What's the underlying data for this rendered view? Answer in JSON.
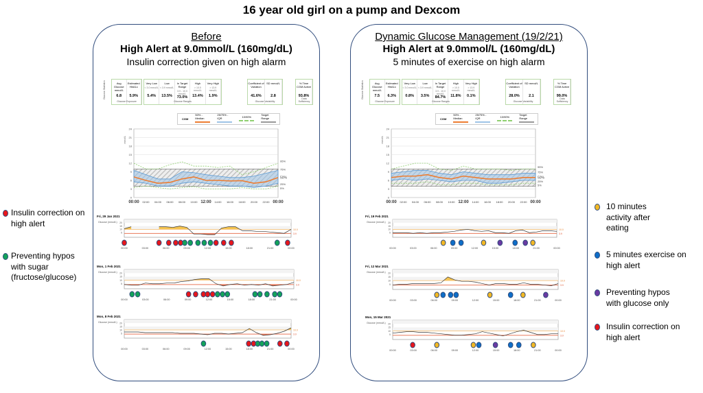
{
  "title": "16 year old girl on a pump and Dexcom",
  "colors": {
    "insulin": "#e8161b",
    "sugar": "#13a35a",
    "activity": "#f2b824",
    "exercise": "#0e6ec8",
    "glucose_only": "#6a3aa2",
    "median": "#ed7d31",
    "iqr": "#9dc3e6",
    "outer": "#8fcf6f",
    "high": "#f5c451",
    "low": "#e9795a",
    "panel_border": "#2f4b7c"
  },
  "legend_left": [
    {
      "type": "insulin",
      "icon": "red-dot",
      "lines": [
        "Insulin correction on",
        "high alert"
      ]
    },
    {
      "type": "sugar",
      "icon": "green-dot",
      "lines": [
        "Preventing hypos",
        "with sugar",
        "(fructose/glucose)"
      ]
    }
  ],
  "legend_right": [
    {
      "type": "activity",
      "icon": "yellow-dot",
      "lines": [
        "10 minutes",
        "activity after",
        "eating"
      ]
    },
    {
      "type": "exercise",
      "icon": "blue-dot",
      "lines": [
        "5 minutes exercise on",
        "high alert"
      ]
    },
    {
      "type": "glucose_only",
      "icon": "purple-dot",
      "lines": [
        "Preventing hypos",
        "with glucose only"
      ]
    },
    {
      "type": "insulin",
      "icon": "red-dot",
      "lines": [
        "Insulin correction on",
        "high alert"
      ]
    }
  ],
  "panels": [
    {
      "heading": "Before",
      "alert": "High Alert at 9.0mmol/L (160mg/dL)",
      "action": "Insulin correction given on high alarm",
      "stats": {
        "side_label": "Glucose Statistics",
        "exposure": {
          "labels": [
            "Avg Glucose mmol/L",
            "Estimated HbA1c"
          ],
          "values": [
            "6.8",
            "5.9%"
          ],
          "footer": "Glucose Exposure"
        },
        "ranges": {
          "labels": [
            "Very Low",
            "Low",
            "In Target Range",
            "High",
            "Very High"
          ],
          "subs": [
            "< 3.0 mmol/L",
            "< 3.9 mmol/L",
            "3.9 - 10.0 mmol/L",
            "> 10.0 mmol/L",
            "> 13.9 mmol/L"
          ],
          "values": [
            "5.4%",
            "13.5%",
            "73.0%",
            "13.4%",
            "1.9%"
          ],
          "footer": "Glucose Ranges"
        },
        "variability": {
          "labels": [
            "Coefficient of Variation",
            "SD mmol/L"
          ],
          "values": [
            "41.6%",
            "2.8"
          ],
          "footer": "Glucose Variability"
        },
        "active": {
          "labels": [
            "% Time CGM Active"
          ],
          "values": [
            "93.8%"
          ],
          "footer": "Data Sufficiency"
        }
      },
      "agp_legend": {
        "cgm": "CGM",
        "median": "50% - Median",
        "iqr": "25/75% - IQR",
        "outer": "10/90%",
        "target": "Target Range"
      }
    },
    {
      "heading": "Dynamic Glucose Management (19/2/21)",
      "alert": "High Alert at 9.0mmol/L (160mg/dL)",
      "action": "5 minutes of exercise on high alarm",
      "stats": {
        "side_label": "Glucose Statistics",
        "exposure": {
          "labels": [
            "Avg Glucose mmol/L",
            "Estimated HbA1c"
          ],
          "values": [
            "7.5",
            "6.3%"
          ],
          "footer": "Glucose Exposure"
        },
        "ranges": {
          "labels": [
            "Very Low",
            "Low",
            "In Target Range",
            "High",
            "Very High"
          ],
          "subs": [
            "< 3.0 mmol/L",
            "< 3.9 mmol/L",
            "3.9 - 10.0 mmol/L",
            "> 10.0 mmol/L",
            "> 13.9 mmol/L"
          ],
          "values": [
            "0.8%",
            "3.5%",
            "84.7%",
            "11.8%",
            "0.1%"
          ],
          "footer": "Glucose Ranges"
        },
        "variability": {
          "labels": [
            "Coefficient of Variation",
            "SD mmol/L"
          ],
          "values": [
            "28.0%",
            "2.1"
          ],
          "footer": "Glucose Variability"
        },
        "active": {
          "labels": [
            "% Time CGM Active"
          ],
          "values": [
            "99.0%"
          ],
          "footer": "Data Sufficiency"
        }
      },
      "agp_legend": {
        "cgm": "CGM",
        "median": "50% - Median",
        "iqr": "25/75% - IQR",
        "outer": "10/90%",
        "target": "Target Range"
      }
    }
  ],
  "chart_data": [
    {
      "id": "agp-before",
      "type": "area",
      "title": "",
      "ylabel": "mmol/L",
      "ylim": [
        0,
        24
      ],
      "yticks": [
        0,
        3,
        6,
        9,
        12,
        15,
        18,
        21,
        24
      ],
      "target": [
        3.9,
        10
      ],
      "x": [
        "00:00",
        "02:00",
        "04:00",
        "06:00",
        "08:00",
        "10:00",
        "12:00",
        "14:00",
        "16:00",
        "18:00",
        "20:00",
        "22:00",
        "00:00"
      ],
      "percentile_labels": [
        "95%",
        "75%",
        "50%",
        "25%",
        "5%"
      ],
      "p5": [
        3.5,
        4,
        3.5,
        3,
        3.5,
        3.8,
        3,
        3,
        3,
        3.5,
        3,
        3,
        4
      ],
      "p25": [
        5.5,
        5,
        4,
        4,
        5,
        5.5,
        5,
        4.5,
        4,
        4,
        3.5,
        4,
        5
      ],
      "median": [
        7.2,
        6,
        5,
        5.3,
        6.5,
        7.2,
        6,
        6,
        5.8,
        5.9,
        5,
        5.5,
        7
      ],
      "p75": [
        9.5,
        8,
        6.5,
        6.5,
        9,
        8.7,
        8,
        7.5,
        7,
        7,
        7.5,
        8.5,
        9.5
      ],
      "p95": [
        12,
        10,
        10,
        11.5,
        12.5,
        11,
        11,
        10.5,
        11,
        8,
        9,
        10.5,
        12
      ]
    },
    {
      "id": "agp-after",
      "type": "area",
      "title": "",
      "ylabel": "mmol/L",
      "ylim": [
        0,
        24
      ],
      "yticks": [
        0,
        3,
        6,
        9,
        12,
        15,
        18,
        21,
        24
      ],
      "target": [
        3.9,
        10
      ],
      "x": [
        "00:00",
        "02:00",
        "04:00",
        "06:00",
        "08:00",
        "10:00",
        "12:00",
        "14:00",
        "16:00",
        "18:00",
        "20:00",
        "22:00",
        "00:00"
      ],
      "percentile_labels": [
        "95%",
        "75%",
        "50%",
        "25%",
        "5%"
      ],
      "p5": [
        5,
        5,
        5,
        5.5,
        4.5,
        4.5,
        5,
        5,
        4.5,
        4.5,
        4.5,
        5,
        5
      ],
      "p25": [
        6,
        6.5,
        6,
        6.5,
        6,
        5.5,
        6,
        6,
        5,
        5,
        5.5,
        6,
        6
      ],
      "median": [
        7,
        7.5,
        7.5,
        8,
        7,
        6.5,
        7.5,
        7,
        6.5,
        6.5,
        6.5,
        7,
        7
      ],
      "p75": [
        8.5,
        9,
        9.5,
        9.5,
        8.5,
        8,
        9,
        8.5,
        8,
        8,
        8,
        8.5,
        8.5
      ],
      "p95": [
        10,
        11,
        12,
        12,
        10,
        9.5,
        11,
        10,
        10,
        10,
        9.5,
        10,
        10
      ]
    },
    {
      "id": "day-before-1",
      "type": "line",
      "date": "Fri, 29 Jan 2021",
      "ylabel": "Glucose (mmol/L)",
      "ylim": [
        0,
        25
      ],
      "yticks": [
        5,
        10,
        15,
        20
      ],
      "thresholds": [
        "10.0",
        "3.9"
      ],
      "xticks": [
        "00:00",
        "03:00",
        "06:00",
        "09:00",
        "12:00",
        "15:00",
        "18:00",
        "21:00",
        "00:00"
      ],
      "hourly": [
        11,
        14,
        null,
        null,
        null,
        14,
        14,
        13,
        15,
        13,
        3,
        3,
        2,
        2,
        12,
        14,
        14,
        8,
        8,
        7,
        7,
        6,
        5,
        4,
        10
      ],
      "markers": [
        [
          0,
          "insulin"
        ],
        [
          5,
          "insulin"
        ],
        [
          6.4,
          "insulin"
        ],
        [
          7.4,
          "insulin"
        ],
        [
          8.1,
          "insulin"
        ],
        [
          8.7,
          "sugar"
        ],
        [
          9.5,
          "sugar"
        ],
        [
          10.6,
          "sugar"
        ],
        [
          11.5,
          "sugar"
        ],
        [
          12.4,
          "sugar"
        ],
        [
          13.2,
          "insulin"
        ],
        [
          14.3,
          "insulin"
        ],
        [
          15.4,
          "insulin"
        ],
        [
          22,
          "sugar"
        ],
        [
          23.5,
          "insulin"
        ]
      ]
    },
    {
      "id": "day-before-2",
      "type": "line",
      "date": "Mon, 1 Feb 2021",
      "ylabel": "Glucose (mmol/L)",
      "ylim": [
        0,
        25
      ],
      "yticks": [
        5,
        10,
        15,
        20
      ],
      "thresholds": [
        "10.0",
        "3.9"
      ],
      "xticks": [
        "00:00",
        "03:00",
        "06:00",
        "09:00",
        "12:00",
        "15:00",
        "18:00",
        "21:00",
        "00:00"
      ],
      "hourly": [
        4,
        3,
        3,
        6,
        5,
        5,
        6,
        6,
        8,
        9,
        11,
        12,
        12,
        5,
        2,
        4,
        5,
        3,
        4,
        3,
        5,
        2,
        3,
        4,
        7
      ],
      "markers": [
        [
          1.1,
          "sugar"
        ],
        [
          1.9,
          "sugar"
        ],
        [
          9.1,
          "insulin"
        ],
        [
          10.1,
          "insulin"
        ],
        [
          11.2,
          "insulin"
        ],
        [
          11.8,
          "insulin"
        ],
        [
          12.5,
          "insulin"
        ],
        [
          13.2,
          "sugar"
        ],
        [
          13.9,
          "sugar"
        ],
        [
          14.6,
          "sugar"
        ],
        [
          18.5,
          "sugar"
        ],
        [
          19.2,
          "sugar"
        ],
        [
          20.2,
          "sugar"
        ],
        [
          21.3,
          "sugar"
        ],
        [
          22,
          "sugar"
        ]
      ]
    },
    {
      "id": "day-before-3",
      "type": "line",
      "date": "Mon, 8 Feb 2021",
      "ylabel": "Glucose (mmol/L)",
      "ylim": [
        0,
        25
      ],
      "yticks": [
        5,
        10,
        15,
        20
      ],
      "thresholds": [
        "10.0",
        "3.9"
      ],
      "xticks": [
        "00:00",
        "03:00",
        "06:00",
        "09:00",
        "12:00",
        "15:00",
        "18:00",
        "21:00",
        "00:00"
      ],
      "hourly": [
        7,
        7,
        7,
        6,
        6,
        6,
        6,
        6,
        5,
        5,
        5,
        4,
        3,
        5,
        5,
        4,
        5,
        6,
        12,
        6,
        2,
        3,
        5,
        8,
        13
      ],
      "markers": [
        [
          11.4,
          "sugar"
        ],
        [
          17.9,
          "insulin"
        ],
        [
          18.6,
          "insulin"
        ],
        [
          19.2,
          "sugar"
        ],
        [
          19.8,
          "sugar"
        ],
        [
          20.5,
          "sugar"
        ],
        [
          22.4,
          "insulin"
        ],
        [
          23.4,
          "insulin"
        ]
      ]
    },
    {
      "id": "day-after-1",
      "type": "line",
      "date": "Fri, 19 Feb 2021",
      "ylabel": "Glucose (mmol/L)",
      "ylim": [
        0,
        25
      ],
      "yticks": [
        5,
        10,
        15,
        20
      ],
      "thresholds": [
        "10.0",
        "3.9"
      ],
      "xticks": [
        "00:00",
        "03:00",
        "06:00",
        "09:00",
        "12:00",
        "15:00",
        "18:00",
        "21:00",
        "00:00"
      ],
      "hourly": [
        5,
        5,
        5,
        4,
        5,
        4,
        5,
        5,
        6,
        7,
        9,
        10,
        8,
        7,
        8,
        5,
        5,
        4,
        8,
        9,
        5,
        6,
        8,
        8,
        7
      ],
      "markers": [
        [
          7.4,
          "activity"
        ],
        [
          8.8,
          "exercise"
        ],
        [
          10,
          "exercise"
        ],
        [
          13.3,
          "activity"
        ],
        [
          15.7,
          "glucose_only"
        ],
        [
          17.9,
          "exercise"
        ],
        [
          19.4,
          "glucose_only"
        ],
        [
          20.5,
          "activity"
        ]
      ]
    },
    {
      "id": "day-after-2",
      "type": "line",
      "date": "Fri, 12 Mar 2021",
      "ylabel": "Glucose (mmol/L)",
      "ylim": [
        0,
        25
      ],
      "yticks": [
        5,
        10,
        15,
        20
      ],
      "thresholds": [
        "10.0",
        "3.9"
      ],
      "xticks": [
        "00:00",
        "03:00",
        "06:00",
        "09:00",
        "12:00",
        "15:00",
        "18:00",
        "21:00",
        "00:00"
      ],
      "hourly": [
        4,
        5,
        5,
        6,
        6,
        6,
        6,
        7,
        15,
        11,
        9,
        9,
        8,
        6,
        4,
        6,
        6,
        5,
        5,
        7,
        5,
        5,
        4,
        3,
        6
      ],
      "markers": [
        [
          6.4,
          "activity"
        ],
        [
          7.3,
          "exercise"
        ],
        [
          8.4,
          "exercise"
        ],
        [
          9.2,
          "exercise"
        ],
        [
          14.1,
          "activity"
        ],
        [
          17.1,
          "exercise"
        ],
        [
          18.9,
          "activity"
        ],
        [
          22.2,
          "glucose_only"
        ]
      ]
    },
    {
      "id": "day-after-3",
      "type": "line",
      "date": "Mon, 15 Mar 2021",
      "ylabel": "Glucose (mmol/L)",
      "ylim": [
        0,
        25
      ],
      "yticks": [
        5,
        10,
        15,
        20
      ],
      "thresholds": [
        "10.0",
        "3.9"
      ],
      "xticks": [
        "00:00",
        "03:00",
        "06:00",
        "09:00",
        "12:00",
        "15:00",
        "18:00",
        "21:00",
        "00:00"
      ],
      "hourly": [
        7,
        8,
        9,
        9,
        8,
        8,
        7,
        6,
        5,
        4,
        4,
        5,
        6,
        9,
        7,
        5,
        3,
        6,
        9,
        11,
        8,
        5,
        5,
        6,
        6
      ],
      "markers": [
        [
          2.9,
          "insulin"
        ],
        [
          6.4,
          "activity"
        ],
        [
          11.7,
          "activity"
        ],
        [
          12.5,
          "exercise"
        ],
        [
          14.9,
          "glucose_only"
        ],
        [
          17.1,
          "exercise"
        ],
        [
          18.3,
          "exercise"
        ],
        [
          20.4,
          "activity"
        ]
      ]
    }
  ]
}
